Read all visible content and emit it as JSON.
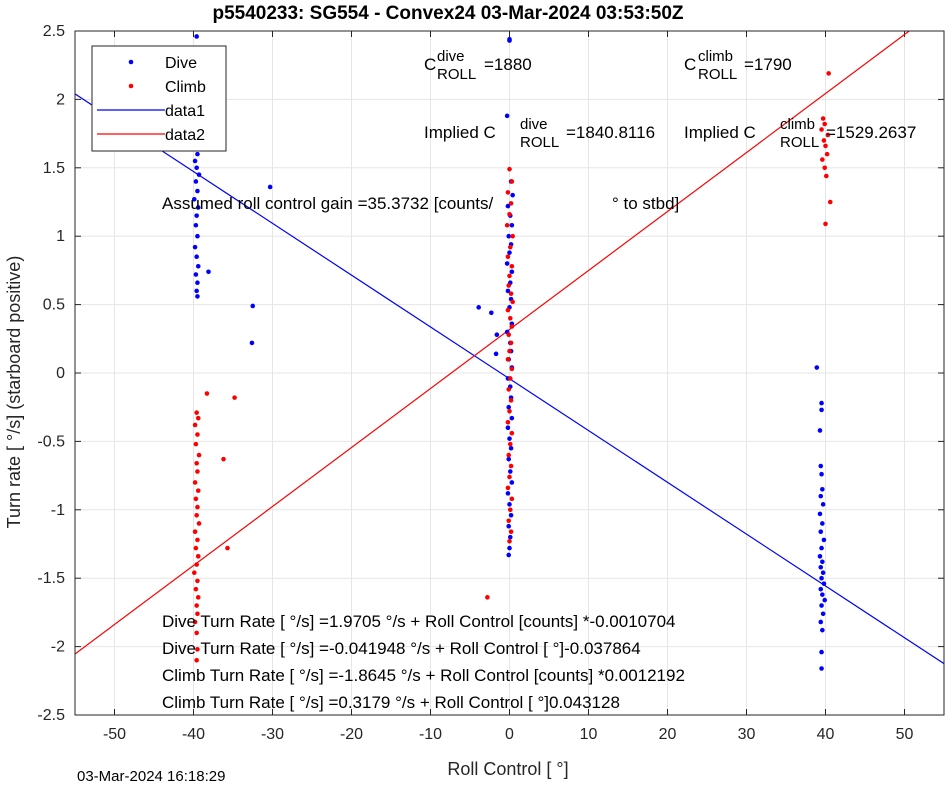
{
  "chart_data": {
    "type": "scatter",
    "title": "p5540233: SG554 - Convex24 03-Mar-2024 03:53:50Z",
    "xlabel": "Roll Control [   °]",
    "ylabel": "Turn rate [   °/s] (starboard positive)",
    "xlim": [
      -55,
      55
    ],
    "ylim": [
      -2.5,
      2.5
    ],
    "xticks": [
      -50,
      -40,
      -30,
      -20,
      -10,
      0,
      10,
      20,
      30,
      40,
      50
    ],
    "yticks": [
      -2.5,
      -2,
      -1.5,
      -1,
      -0.5,
      0,
      0.5,
      1,
      1.5,
      2,
      2.5
    ],
    "grid": true,
    "legend_position": "top-left",
    "legend": [
      {
        "label": "Dive",
        "kind": "marker",
        "color": "#0000ff"
      },
      {
        "label": "Climb",
        "kind": "marker",
        "color": "#ff0000"
      },
      {
        "label": "data1",
        "kind": "line",
        "color": "#0000ff"
      },
      {
        "label": "data2",
        "kind": "line",
        "color": "#ff0000"
      }
    ],
    "lines": [
      {
        "name": "data1",
        "color": "#0000ff",
        "slope": -0.037864,
        "intercept": -0.041948
      },
      {
        "name": "data2",
        "color": "#ff0000",
        "slope": 0.043128,
        "intercept": 0.3179
      }
    ],
    "series": [
      {
        "name": "Dive",
        "color": "#0000ff",
        "points": [
          [
            -39.6,
            2.46
          ],
          [
            -39.7,
            1.98
          ],
          [
            -39.5,
            1.92
          ],
          [
            -39.8,
            1.85
          ],
          [
            -39.6,
            1.78
          ],
          [
            -39.4,
            1.72
          ],
          [
            -39.7,
            1.66
          ],
          [
            -39.5,
            1.6
          ],
          [
            -39.8,
            1.55
          ],
          [
            -39.6,
            1.5
          ],
          [
            -39.3,
            1.45
          ],
          [
            -39.7,
            1.4
          ],
          [
            -39.5,
            1.33
          ],
          [
            -39.9,
            1.27
          ],
          [
            -39.4,
            1.21
          ],
          [
            -39.6,
            1.15
          ],
          [
            -39.7,
            1.08
          ],
          [
            -39.5,
            1.0
          ],
          [
            -39.8,
            0.92
          ],
          [
            -39.6,
            0.85
          ],
          [
            -39.4,
            0.78
          ],
          [
            -39.7,
            0.72
          ],
          [
            -39.5,
            0.66
          ],
          [
            -39.6,
            0.6
          ],
          [
            -39.5,
            0.56
          ],
          [
            -38.1,
            0.74
          ],
          [
            -30.3,
            1.36
          ],
          [
            -32.5,
            0.49
          ],
          [
            -32.6,
            0.22
          ],
          [
            0.0,
            2.44
          ],
          [
            0.0,
            2.43
          ],
          [
            -0.3,
            1.88
          ],
          [
            0.2,
            1.4
          ],
          [
            0.4,
            1.3
          ],
          [
            -0.2,
            1.22
          ],
          [
            0.1,
            1.15
          ],
          [
            0.3,
            1.08
          ],
          [
            -0.1,
            1.0
          ],
          [
            0.2,
            0.94
          ],
          [
            0.0,
            0.88
          ],
          [
            -0.3,
            0.8
          ],
          [
            0.3,
            0.74
          ],
          [
            0.1,
            0.66
          ],
          [
            -0.2,
            0.6
          ],
          [
            0.2,
            0.54
          ],
          [
            0.0,
            0.48
          ],
          [
            -3.9,
            0.48
          ],
          [
            -2.3,
            0.44
          ],
          [
            -1.6,
            0.28
          ],
          [
            -1.7,
            0.14
          ],
          [
            0.3,
            0.36
          ],
          [
            -0.3,
            0.3
          ],
          [
            0.1,
            0.22
          ],
          [
            0.2,
            0.16
          ],
          [
            -0.1,
            0.1
          ],
          [
            0.3,
            0.04
          ],
          [
            -0.2,
            -0.04
          ],
          [
            0.1,
            -0.1
          ],
          [
            0.2,
            -0.18
          ],
          [
            -0.1,
            -0.25
          ],
          [
            0.3,
            -0.33
          ],
          [
            -0.2,
            -0.4
          ],
          [
            0.0,
            -0.48
          ],
          [
            0.2,
            -0.55
          ],
          [
            -0.1,
            -0.63
          ],
          [
            0.1,
            -0.72
          ],
          [
            0.3,
            -0.8
          ],
          [
            -0.2,
            -0.88
          ],
          [
            0.0,
            -0.96
          ],
          [
            0.2,
            -1.04
          ],
          [
            -0.1,
            -1.12
          ],
          [
            0.1,
            -1.2
          ],
          [
            0.0,
            -1.28
          ],
          [
            -0.1,
            -1.33
          ],
          [
            38.9,
            0.04
          ],
          [
            39.5,
            -0.22
          ],
          [
            39.5,
            -0.27
          ],
          [
            39.3,
            -0.42
          ],
          [
            39.4,
            -0.68
          ],
          [
            39.5,
            -0.74
          ],
          [
            39.6,
            -0.85
          ],
          [
            39.4,
            -0.9
          ],
          [
            39.7,
            -0.96
          ],
          [
            39.3,
            -1.03
          ],
          [
            39.6,
            -1.1
          ],
          [
            39.4,
            -1.16
          ],
          [
            39.8,
            -1.22
          ],
          [
            39.5,
            -1.28
          ],
          [
            39.3,
            -1.34
          ],
          [
            39.6,
            -1.38
          ],
          [
            39.4,
            -1.42
          ],
          [
            39.7,
            -1.46
          ],
          [
            39.5,
            -1.5
          ],
          [
            39.8,
            -1.54
          ],
          [
            39.4,
            -1.58
          ],
          [
            39.6,
            -1.62
          ],
          [
            39.9,
            -1.66
          ],
          [
            39.5,
            -1.7
          ],
          [
            39.7,
            -1.76
          ],
          [
            39.4,
            -1.82
          ],
          [
            39.6,
            -1.88
          ],
          [
            39.5,
            -2.04
          ],
          [
            39.5,
            -2.16
          ]
        ]
      },
      {
        "name": "Climb",
        "color": "#ff0000",
        "points": [
          [
            -39.6,
            -0.29
          ],
          [
            -39.4,
            -0.33
          ],
          [
            -39.8,
            -0.38
          ],
          [
            -39.5,
            -0.45
          ],
          [
            -39.7,
            -0.52
          ],
          [
            -39.3,
            -0.6
          ],
          [
            -39.6,
            -0.66
          ],
          [
            -39.5,
            -0.72
          ],
          [
            -39.8,
            -0.8
          ],
          [
            -39.4,
            -0.86
          ],
          [
            -39.7,
            -0.92
          ],
          [
            -39.5,
            -0.98
          ],
          [
            -39.6,
            -1.04
          ],
          [
            -39.3,
            -1.1
          ],
          [
            -39.8,
            -1.16
          ],
          [
            -39.5,
            -1.22
          ],
          [
            -39.7,
            -1.28
          ],
          [
            -39.4,
            -1.34
          ],
          [
            -39.6,
            -1.4
          ],
          [
            -39.9,
            -1.46
          ],
          [
            -39.5,
            -1.52
          ],
          [
            -39.7,
            -1.58
          ],
          [
            -39.4,
            -1.64
          ],
          [
            -39.6,
            -1.7
          ],
          [
            -39.5,
            -1.76
          ],
          [
            -39.8,
            -1.82
          ],
          [
            -39.6,
            -1.9
          ],
          [
            -39.5,
            -2.02
          ],
          [
            -39.6,
            -2.1
          ],
          [
            -38.3,
            -0.15
          ],
          [
            -34.8,
            -0.18
          ],
          [
            -36.2,
            -0.63
          ],
          [
            -35.7,
            -1.28
          ],
          [
            -2.8,
            -1.64
          ],
          [
            0.0,
            1.49
          ],
          [
            0.3,
            1.4
          ],
          [
            -0.2,
            1.32
          ],
          [
            0.2,
            1.24
          ],
          [
            0.0,
            1.16
          ],
          [
            -0.3,
            1.08
          ],
          [
            0.4,
            1.0
          ],
          [
            0.1,
            0.92
          ],
          [
            -0.2,
            0.85
          ],
          [
            0.3,
            0.78
          ],
          [
            0.0,
            0.71
          ],
          [
            -0.1,
            0.64
          ],
          [
            0.2,
            0.58
          ],
          [
            0.4,
            0.52
          ],
          [
            -0.2,
            0.46
          ],
          [
            0.1,
            0.4
          ],
          [
            0.3,
            0.34
          ],
          [
            -0.1,
            0.28
          ],
          [
            0.2,
            0.22
          ],
          [
            0.0,
            0.16
          ],
          [
            -0.2,
            0.1
          ],
          [
            0.3,
            0.03
          ],
          [
            0.1,
            -0.04
          ],
          [
            -0.1,
            -0.12
          ],
          [
            0.2,
            -0.2
          ],
          [
            0.0,
            -0.28
          ],
          [
            -0.2,
            -0.36
          ],
          [
            0.3,
            -0.44
          ],
          [
            0.1,
            -0.52
          ],
          [
            -0.1,
            -0.6
          ],
          [
            0.2,
            -0.68
          ],
          [
            0.0,
            -0.76
          ],
          [
            -0.2,
            -0.84
          ],
          [
            0.3,
            -0.92
          ],
          [
            0.1,
            -1.0
          ],
          [
            -0.1,
            -1.08
          ],
          [
            0.2,
            -1.16
          ],
          [
            0.0,
            -1.23
          ],
          [
            40.4,
            2.19
          ],
          [
            39.7,
            1.86
          ],
          [
            39.9,
            1.82
          ],
          [
            39.5,
            1.78
          ],
          [
            40.3,
            1.74
          ],
          [
            39.8,
            1.7
          ],
          [
            40.0,
            1.66
          ],
          [
            40.2,
            1.6
          ],
          [
            39.6,
            1.56
          ],
          [
            39.9,
            1.5
          ],
          [
            40.1,
            1.44
          ],
          [
            40.6,
            1.25
          ],
          [
            40.0,
            1.09
          ]
        ]
      }
    ],
    "annotations": {
      "c_dive_main": "C",
      "c_dive_sup": "dive",
      "c_dive_sub": "ROLL",
      "c_dive_val": "=1880",
      "c_climb_main": "C",
      "c_climb_sup": "climb",
      "c_climb_sub": "ROLL",
      "c_climb_val": "=1790",
      "implied_dive_main": "Implied C",
      "implied_dive_sup": "dive",
      "implied_dive_sub": "ROLL",
      "implied_dive_val": "=1840.8116",
      "implied_climb_main": "Implied C",
      "implied_climb_sup": "climb",
      "implied_climb_sub": "ROLL",
      "implied_climb_val": "=1529.2637",
      "gain_a": "Assumed roll control gain =35.3732 [counts/",
      "gain_b": "° to stbd]",
      "fit1": "Dive Turn Rate [    °/s] =1.9705     °/s + Roll Control [counts] *-0.0010704",
      "fit2": "Dive Turn Rate [    °/s] =-0.041948      °/s + Roll Control [      °]-0.037864",
      "fit3": "Climb Turn Rate [    °/s] =-1.8645     °/s + Roll Control [counts] *0.0012192",
      "fit4": "Climb Turn Rate [    °/s] =0.3179    °/s + Roll Control [     °]0.043128"
    }
  },
  "footer": {
    "timestamp": "03-Mar-2024 16:18:29"
  }
}
